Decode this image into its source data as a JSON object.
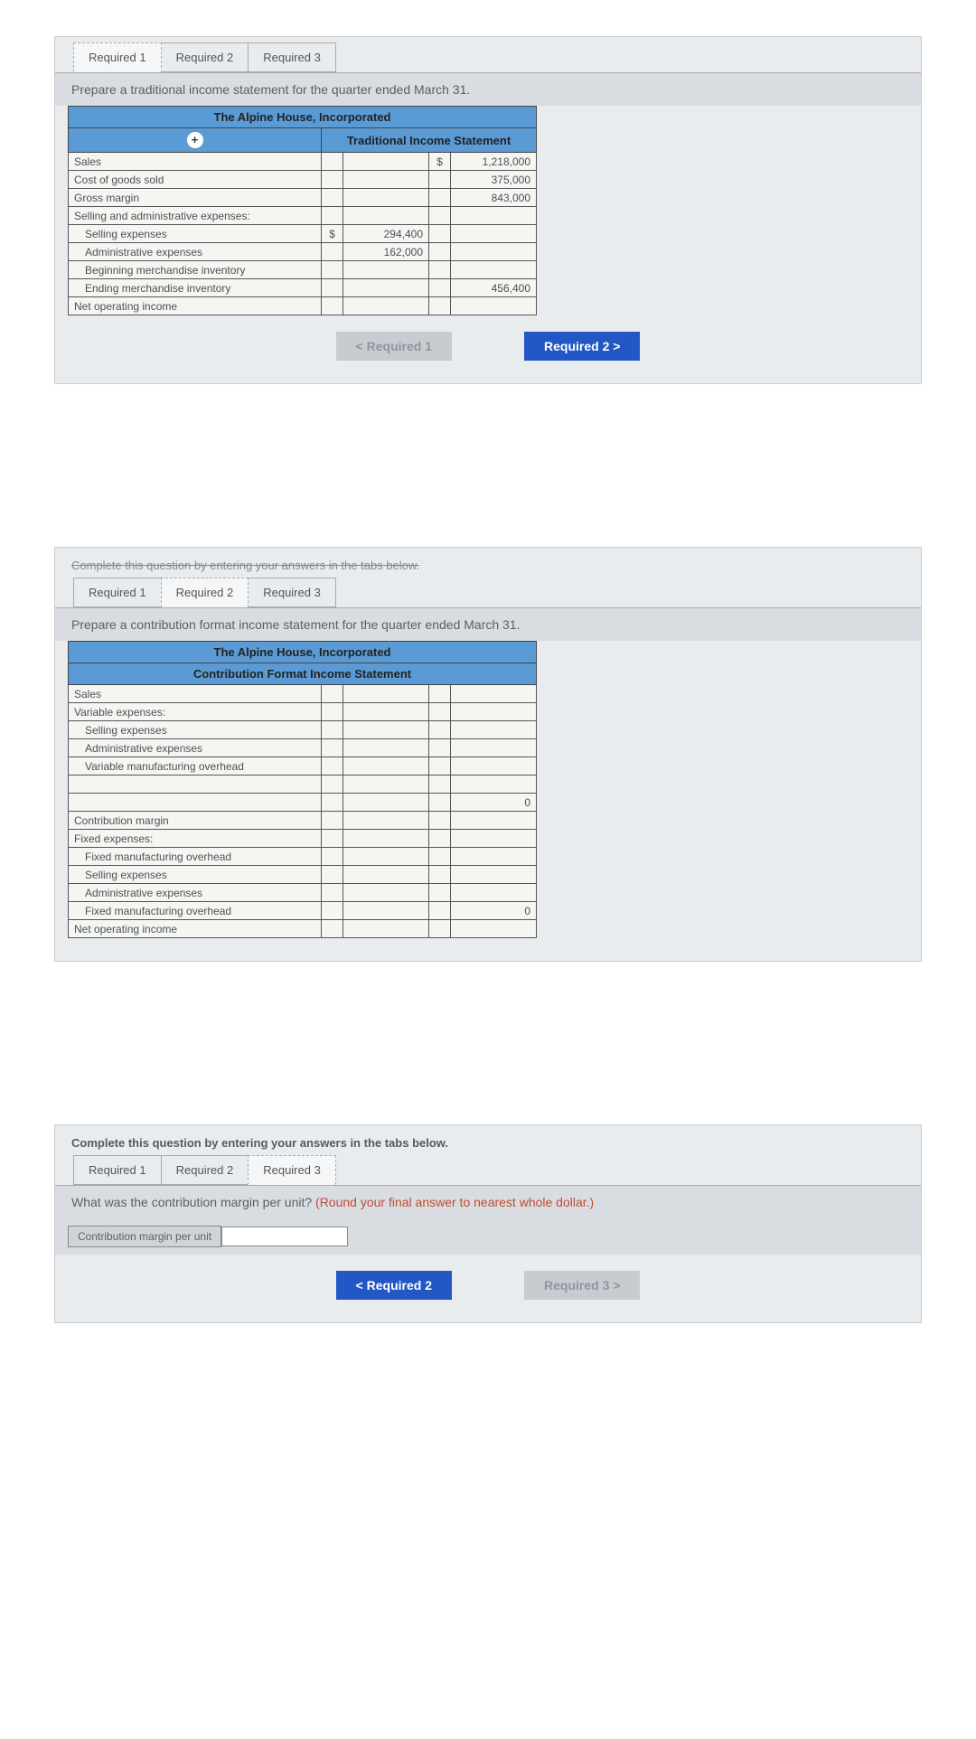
{
  "q1": {
    "tabs": [
      "Required 1",
      "Required 2",
      "Required 3"
    ],
    "instruction": "Prepare a traditional income statement for the quarter ended March 31.",
    "header1": "The Alpine House, Incorporated",
    "header2": "Traditional Income Statement",
    "rows": [
      {
        "label": "Sales",
        "d2": "$",
        "c2": "1,218,000"
      },
      {
        "label": "Cost of goods sold",
        "c2": "375,000"
      },
      {
        "label": "Gross margin",
        "c2": "843,000"
      },
      {
        "label": "Selling and administrative expenses:"
      },
      {
        "label": "Selling expenses",
        "indent": true,
        "d1": "$",
        "c1": "294,400"
      },
      {
        "label": "Administrative expenses",
        "indent": true,
        "c1": "162,000"
      },
      {
        "label": "Beginning merchandise inventory",
        "indent": true
      },
      {
        "label": "Ending merchandise inventory",
        "indent": true,
        "c2": "456,400"
      },
      {
        "label": "Net operating income"
      }
    ],
    "nav_prev": "<  Required 1",
    "nav_next": "Required 2  >"
  },
  "q2": {
    "complete": "Complete this question by entering your answers in the tabs below.",
    "tabs": [
      "Required 1",
      "Required 2",
      "Required 3"
    ],
    "instruction": "Prepare a contribution format income statement for the quarter ended March 31.",
    "header1": "The Alpine House, Incorporated",
    "header2": "Contribution Format Income Statement",
    "rows": [
      {
        "label": "Sales"
      },
      {
        "label": "Variable expenses:"
      },
      {
        "label": "Selling expenses",
        "indent": true
      },
      {
        "label": "Administrative expenses",
        "indent": true
      },
      {
        "label": "Variable manufacturing overhead",
        "indent": true
      },
      {
        "label": ""
      },
      {
        "label": "",
        "c2": "0"
      },
      {
        "label": "Contribution margin"
      },
      {
        "label": "Fixed expenses:"
      },
      {
        "label": "Fixed manufacturing overhead",
        "indent": true
      },
      {
        "label": "Selling expenses",
        "indent": true
      },
      {
        "label": "Administrative expenses",
        "indent": true
      },
      {
        "label": "Fixed manufacturing overhead",
        "indent": true,
        "c2": "0"
      },
      {
        "label": "Net operating income"
      }
    ]
  },
  "q3": {
    "complete": "Complete this question by entering your answers in the tabs below.",
    "tabs": [
      "Required 1",
      "Required 2",
      "Required 3"
    ],
    "instruction": "What was the contribution margin per unit? ",
    "instruction_red": "(Round your final answer to nearest whole dollar.)",
    "row_label": "Contribution margin per unit",
    "nav_prev": "<  Required 2",
    "nav_next": "Required 3  >"
  }
}
